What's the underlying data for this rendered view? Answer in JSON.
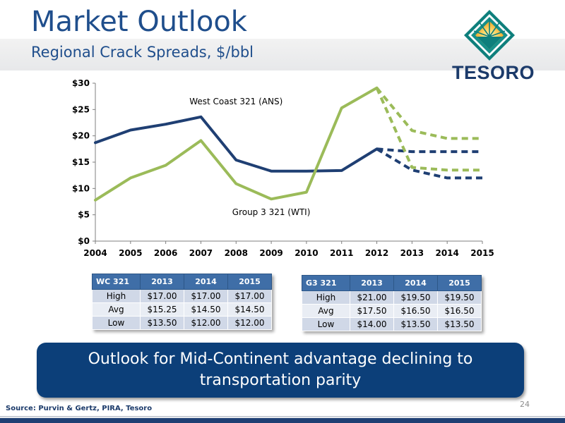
{
  "header": {
    "title": "Market Outlook",
    "subtitle": "Regional Crack Spreads, $/bbl"
  },
  "logo": {
    "text": "TESORO"
  },
  "colors": {
    "wc": "#1f3f73",
    "g3": "#9bbb59",
    "title": "#1f4e8c",
    "callout": "#0c3f79",
    "table_header": "#3f6ea7"
  },
  "chart_data": {
    "type": "line",
    "categories": [
      "2004",
      "2005",
      "2006",
      "2007",
      "2008",
      "2009",
      "2010",
      "2011",
      "2012",
      "2013",
      "2014",
      "2015"
    ],
    "ylim": [
      0,
      30
    ],
    "yticks": [
      "$0",
      "$5",
      "$10",
      "$15",
      "$20",
      "$25",
      "$30"
    ],
    "grid": false,
    "series": [
      {
        "name": "West Coast 321 (ANS)",
        "color": "#1f3f73",
        "dashed": false,
        "values": [
          18.7,
          21.1,
          22.2,
          23.6,
          15.4,
          13.3,
          13.3,
          13.4,
          17.5,
          null,
          null,
          null
        ]
      },
      {
        "name": "Group 3 321 (WTI)",
        "color": "#9bbb59",
        "dashed": false,
        "values": [
          7.8,
          12.0,
          14.4,
          19.1,
          10.9,
          8.0,
          9.3,
          25.3,
          29.1,
          null,
          null,
          null
        ]
      },
      {
        "name": "",
        "color": "#1f3f73",
        "dashed": true,
        "values": [
          null,
          null,
          null,
          null,
          null,
          null,
          null,
          null,
          17.5,
          17.0,
          17.0,
          17.0
        ]
      },
      {
        "name": "",
        "color": "#1f3f73",
        "dashed": true,
        "values": [
          null,
          null,
          null,
          null,
          null,
          null,
          null,
          null,
          17.5,
          13.5,
          12.0,
          12.0
        ]
      },
      {
        "name": "",
        "color": "#9bbb59",
        "dashed": true,
        "values": [
          null,
          null,
          null,
          null,
          null,
          null,
          null,
          null,
          29.1,
          21.0,
          19.5,
          19.5
        ]
      },
      {
        "name": "",
        "color": "#9bbb59",
        "dashed": true,
        "values": [
          null,
          null,
          null,
          null,
          null,
          null,
          null,
          null,
          29.1,
          14.0,
          13.5,
          13.5
        ]
      }
    ],
    "annotations": [
      {
        "text": "West Coast 321 (ANS)",
        "x": "2008",
        "y": 26.5
      },
      {
        "text": "Group 3 321 (WTI)",
        "x": "2009",
        "y": 5.5
      }
    ]
  },
  "tables": {
    "wc": {
      "header": [
        "WC 321",
        "2013",
        "2014",
        "2015"
      ],
      "rows": [
        [
          "High",
          "$17.00",
          "$17.00",
          "$17.00"
        ],
        [
          "Avg",
          "$15.25",
          "$14.50",
          "$14.50"
        ],
        [
          "Low",
          "$13.50",
          "$12.00",
          "$12.00"
        ]
      ]
    },
    "g3": {
      "header": [
        "G3 321",
        "2013",
        "2014",
        "2015"
      ],
      "rows": [
        [
          "High",
          "$21.00",
          "$19.50",
          "$19.50"
        ],
        [
          "Avg",
          "$17.50",
          "$16.50",
          "$16.50"
        ],
        [
          "Low",
          "$14.00",
          "$13.50",
          "$13.50"
        ]
      ]
    }
  },
  "callout": {
    "text": "Outlook for Mid-Continent advantage declining to transportation parity"
  },
  "footer": {
    "source": "Source: Purvin & Gertz, PIRA, Tesoro",
    "page": "24"
  }
}
